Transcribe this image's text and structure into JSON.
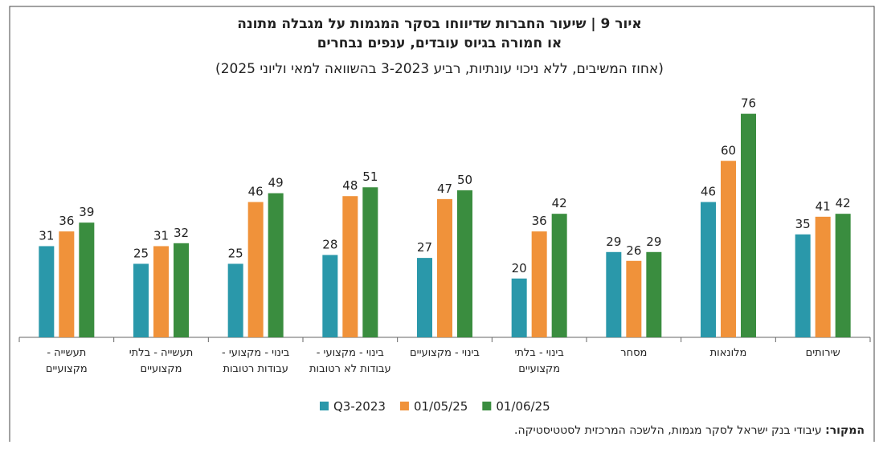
{
  "chart_data": {
    "type": "bar",
    "title": "איור 9 | שיעור החברות שדיווחו בסקר המגמות על מגבלה מתונה",
    "title_line2": "או חמורה בגיוס עובדים, ענפים נבחרים",
    "subtitle": "(אחוז המשיבים, ללא ניכוי עונתיות, רביע 3-2023 בהשוואה למאי וליוני 2025)",
    "categories": [
      "תעשייה - מקצועיים",
      "תעשייה - בלתי מקצועיים",
      "בינוי - מקצועי - עבודות רטובות",
      "בינוי - מקצועי - עבודות לא רטובות",
      "בינוי - מקצועיים",
      "בינוי - בלתי מקצועיים",
      "מסחר",
      "מלונאות",
      "שירותים"
    ],
    "series": [
      {
        "name": "Q3-2023",
        "color": "#2a98aa",
        "values": [
          31,
          25,
          25,
          28,
          27,
          20,
          29,
          46,
          35
        ]
      },
      {
        "name": "01/05/25",
        "color": "#f0923a",
        "values": [
          36,
          31,
          46,
          48,
          47,
          36,
          26,
          60,
          41
        ]
      },
      {
        "name": "01/06/25",
        "color": "#3a8d3f",
        "values": [
          39,
          32,
          49,
          51,
          50,
          42,
          29,
          76,
          42
        ]
      }
    ],
    "ylim": [
      0,
      80
    ],
    "legend": "bottom",
    "source_label": "המקור:",
    "source": "עיבודי בנק ישראל לסקר מגמות, הלשכה המרכזית לסטטיסטיקה."
  }
}
